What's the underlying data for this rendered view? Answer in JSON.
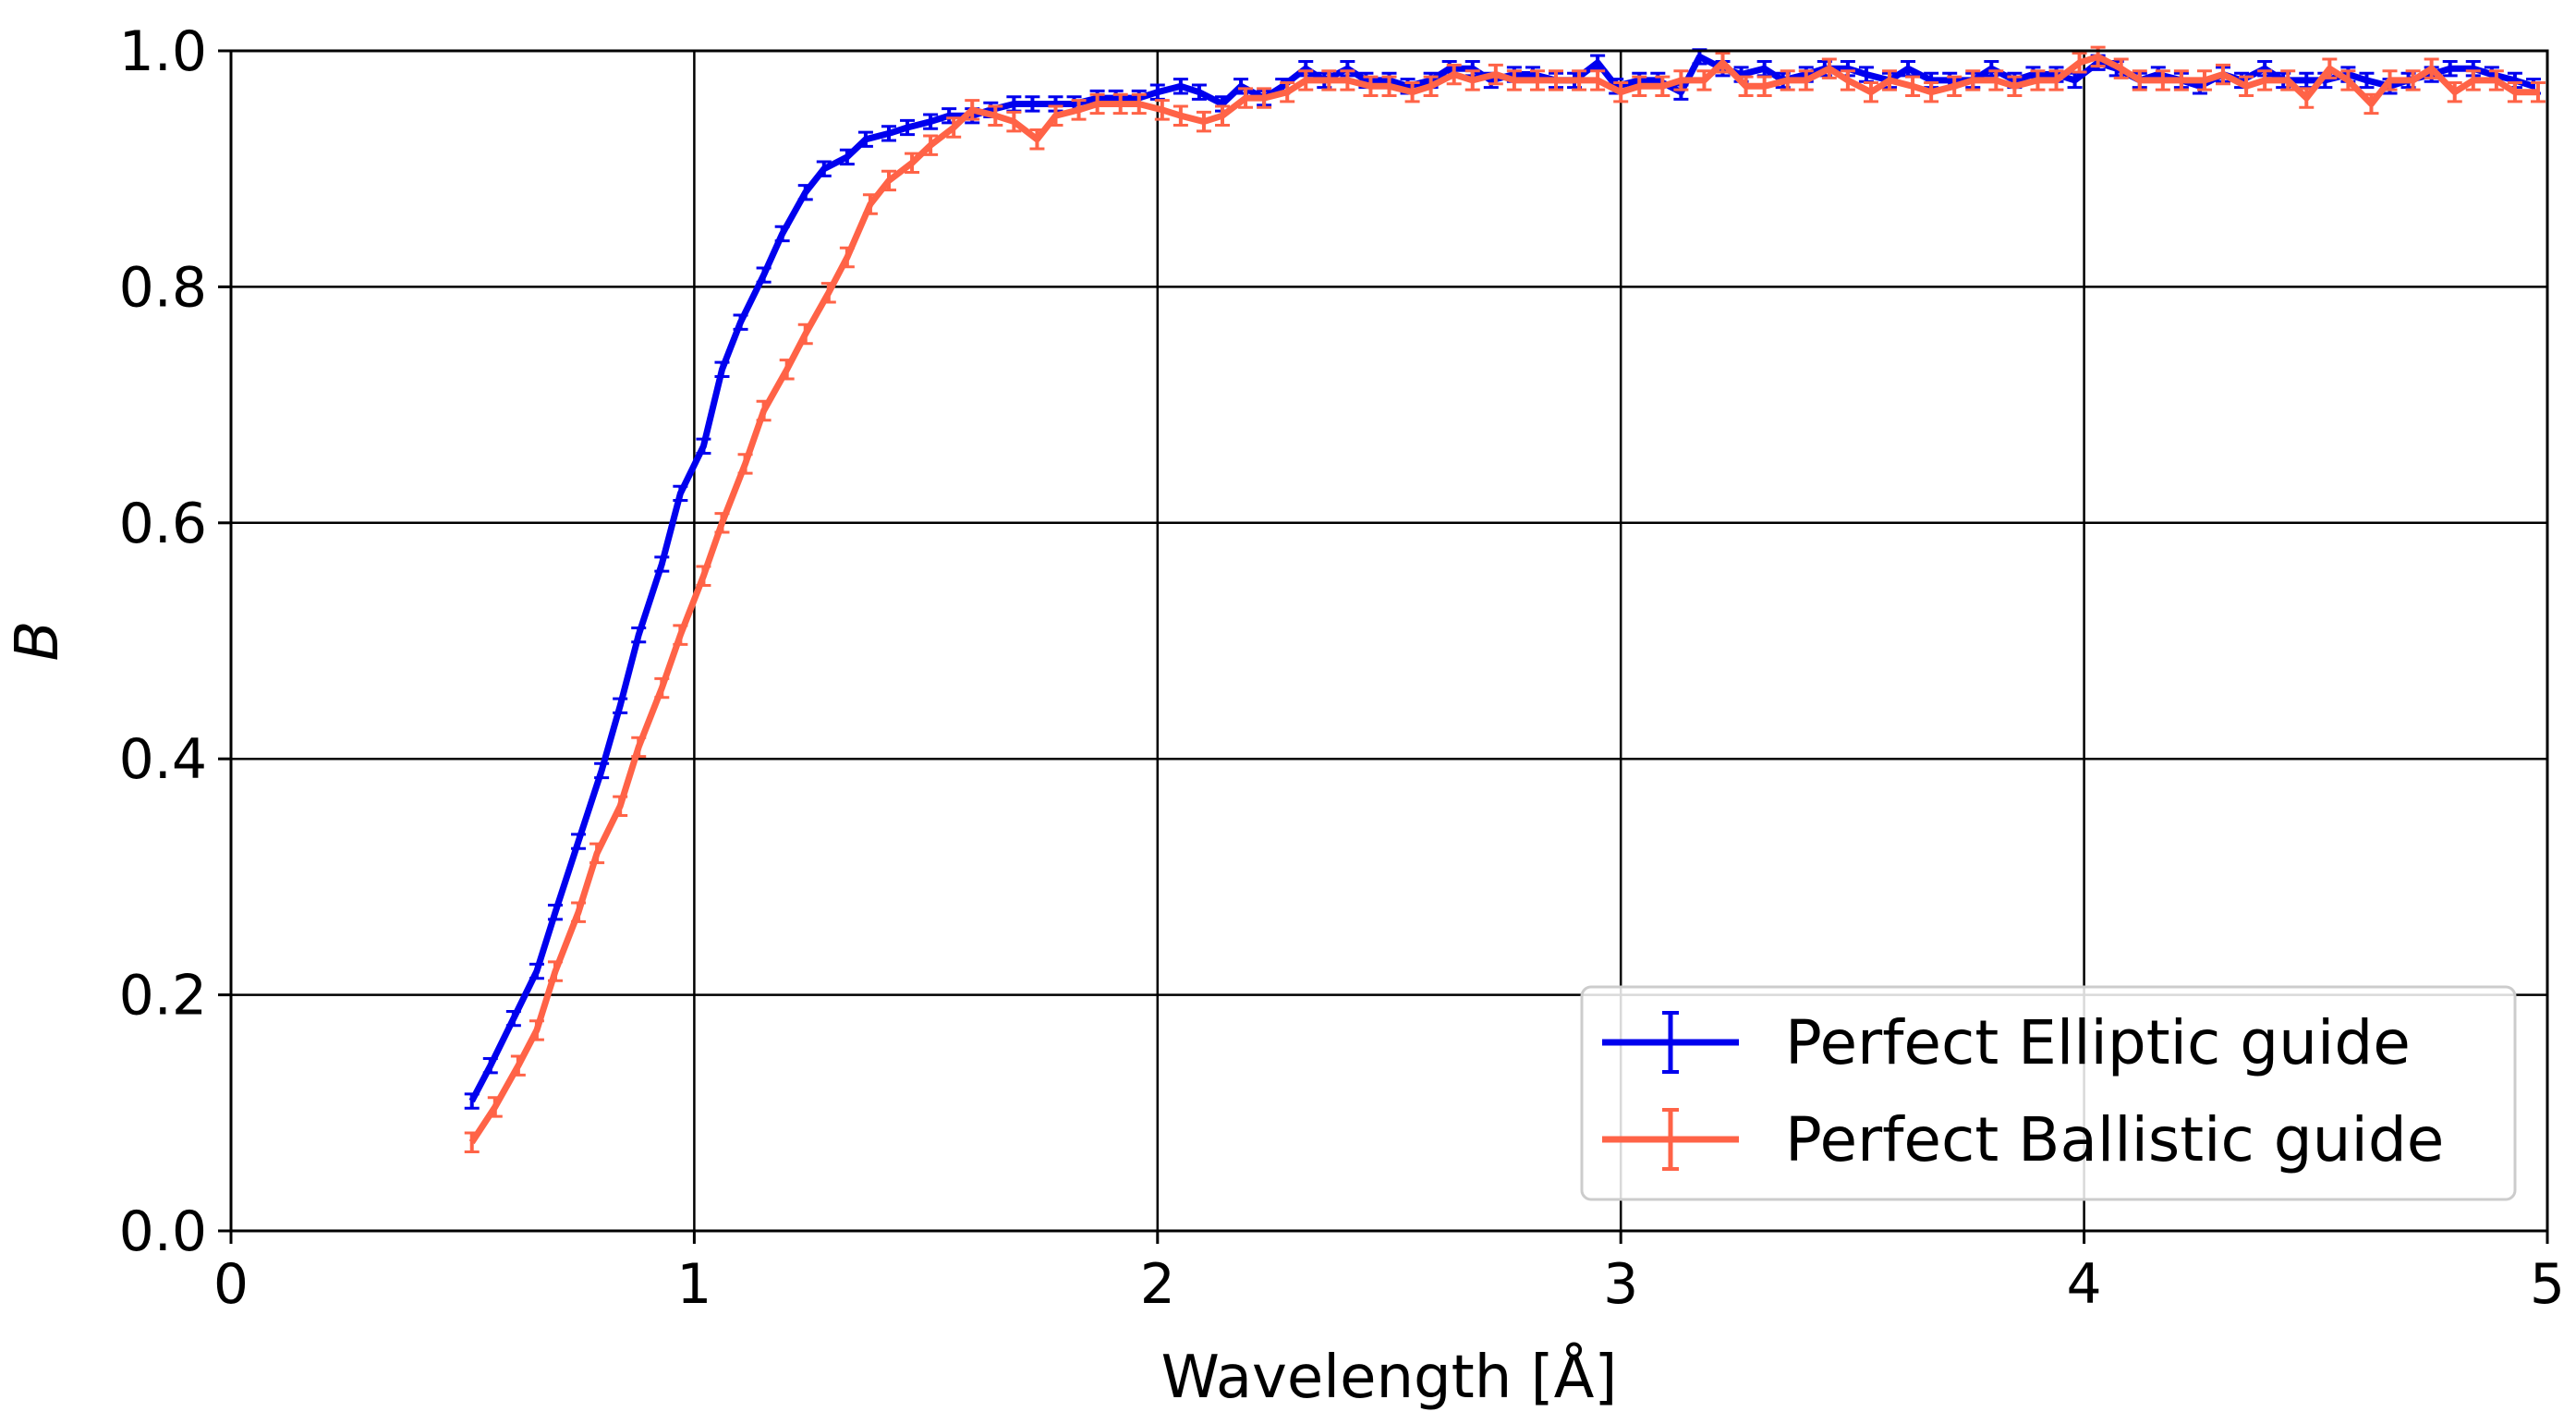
{
  "chart_data": {
    "type": "line",
    "xlabel": "Wavelength  [Å]",
    "ylabel": "B",
    "xlim": [
      0,
      5
    ],
    "ylim": [
      0,
      1.0
    ],
    "xticks": [
      0,
      1,
      2,
      3,
      4,
      5
    ],
    "xtick_labels": [
      "0",
      "1",
      "2",
      "3",
      "4",
      "5"
    ],
    "yticks": [
      0.0,
      0.2,
      0.4,
      0.6,
      0.8,
      1.0
    ],
    "ytick_labels": [
      "0.0",
      "0.2",
      "0.4",
      "0.6",
      "0.8",
      "1.0"
    ],
    "grid": true,
    "legend_position": "bottom-right",
    "error_bars": true,
    "series": [
      {
        "name": "Perfect Elliptic guide",
        "color": "#0000ee",
        "points": [
          [
            0.52,
            0.11
          ],
          [
            0.56,
            0.14
          ],
          [
            0.61,
            0.18
          ],
          [
            0.66,
            0.22
          ],
          [
            0.7,
            0.27
          ],
          [
            0.75,
            0.33
          ],
          [
            0.8,
            0.39
          ],
          [
            0.84,
            0.445
          ],
          [
            0.88,
            0.505
          ],
          [
            0.93,
            0.565
          ],
          [
            0.97,
            0.625
          ],
          [
            1.02,
            0.665
          ],
          [
            1.06,
            0.73
          ],
          [
            1.1,
            0.77
          ],
          [
            1.15,
            0.81
          ],
          [
            1.19,
            0.845
          ],
          [
            1.24,
            0.88
          ],
          [
            1.28,
            0.9
          ],
          [
            1.33,
            0.91
          ],
          [
            1.37,
            0.925
          ],
          [
            1.42,
            0.93
          ],
          [
            1.46,
            0.935
          ],
          [
            1.51,
            0.94
          ],
          [
            1.55,
            0.945
          ],
          [
            1.6,
            0.945
          ],
          [
            1.64,
            0.95
          ],
          [
            1.69,
            0.955
          ],
          [
            1.73,
            0.955
          ],
          [
            1.78,
            0.955
          ],
          [
            1.82,
            0.955
          ],
          [
            1.87,
            0.96
          ],
          [
            1.91,
            0.96
          ],
          [
            1.96,
            0.96
          ],
          [
            2.0,
            0.965
          ],
          [
            2.05,
            0.97
          ],
          [
            2.09,
            0.965
          ],
          [
            2.14,
            0.955
          ],
          [
            2.18,
            0.97
          ],
          [
            2.23,
            0.96
          ],
          [
            2.27,
            0.97
          ],
          [
            2.32,
            0.985
          ],
          [
            2.36,
            0.975
          ],
          [
            2.41,
            0.985
          ],
          [
            2.45,
            0.975
          ],
          [
            2.5,
            0.975
          ],
          [
            2.54,
            0.97
          ],
          [
            2.59,
            0.975
          ],
          [
            2.63,
            0.985
          ],
          [
            2.68,
            0.985
          ],
          [
            2.72,
            0.975
          ],
          [
            2.77,
            0.98
          ],
          [
            2.81,
            0.98
          ],
          [
            2.86,
            0.975
          ],
          [
            2.9,
            0.975
          ],
          [
            2.95,
            0.99
          ],
          [
            2.99,
            0.97
          ],
          [
            3.04,
            0.975
          ],
          [
            3.08,
            0.975
          ],
          [
            3.13,
            0.965
          ],
          [
            3.17,
            0.995
          ],
          [
            3.22,
            0.985
          ],
          [
            3.26,
            0.98
          ],
          [
            3.31,
            0.985
          ],
          [
            3.35,
            0.975
          ],
          [
            3.4,
            0.98
          ],
          [
            3.44,
            0.985
          ],
          [
            3.49,
            0.985
          ],
          [
            3.53,
            0.98
          ],
          [
            3.58,
            0.975
          ],
          [
            3.62,
            0.985
          ],
          [
            3.67,
            0.975
          ],
          [
            3.71,
            0.975
          ],
          [
            3.76,
            0.975
          ],
          [
            3.8,
            0.985
          ],
          [
            3.85,
            0.975
          ],
          [
            3.89,
            0.98
          ],
          [
            3.94,
            0.98
          ],
          [
            3.98,
            0.975
          ],
          [
            4.03,
            0.99
          ],
          [
            4.07,
            0.985
          ],
          [
            4.12,
            0.975
          ],
          [
            4.16,
            0.98
          ],
          [
            4.21,
            0.975
          ],
          [
            4.25,
            0.97
          ],
          [
            4.3,
            0.98
          ],
          [
            4.34,
            0.975
          ],
          [
            4.39,
            0.985
          ],
          [
            4.43,
            0.975
          ],
          [
            4.48,
            0.975
          ],
          [
            4.52,
            0.975
          ],
          [
            4.57,
            0.98
          ],
          [
            4.61,
            0.975
          ],
          [
            4.66,
            0.97
          ],
          [
            4.7,
            0.975
          ],
          [
            4.75,
            0.98
          ],
          [
            4.79,
            0.985
          ],
          [
            4.84,
            0.985
          ],
          [
            4.88,
            0.98
          ],
          [
            4.93,
            0.975
          ],
          [
            4.97,
            0.97
          ]
        ],
        "error": 0.006
      },
      {
        "name": "Perfect Ballistic guide",
        "color": "#ff6347",
        "points": [
          [
            0.52,
            0.075
          ],
          [
            0.57,
            0.105
          ],
          [
            0.62,
            0.14
          ],
          [
            0.66,
            0.17
          ],
          [
            0.7,
            0.22
          ],
          [
            0.75,
            0.27
          ],
          [
            0.79,
            0.32
          ],
          [
            0.84,
            0.36
          ],
          [
            0.88,
            0.41
          ],
          [
            0.93,
            0.46
          ],
          [
            0.97,
            0.505
          ],
          [
            1.02,
            0.555
          ],
          [
            1.06,
            0.6
          ],
          [
            1.11,
            0.65
          ],
          [
            1.15,
            0.695
          ],
          [
            1.2,
            0.73
          ],
          [
            1.24,
            0.76
          ],
          [
            1.29,
            0.795
          ],
          [
            1.33,
            0.825
          ],
          [
            1.38,
            0.87
          ],
          [
            1.42,
            0.89
          ],
          [
            1.47,
            0.905
          ],
          [
            1.51,
            0.92
          ],
          [
            1.56,
            0.935
          ],
          [
            1.6,
            0.95
          ],
          [
            1.65,
            0.945
          ],
          [
            1.69,
            0.94
          ],
          [
            1.74,
            0.925
          ],
          [
            1.78,
            0.945
          ],
          [
            1.83,
            0.95
          ],
          [
            1.87,
            0.955
          ],
          [
            1.92,
            0.955
          ],
          [
            1.96,
            0.955
          ],
          [
            2.01,
            0.95
          ],
          [
            2.05,
            0.945
          ],
          [
            2.1,
            0.94
          ],
          [
            2.14,
            0.945
          ],
          [
            2.19,
            0.96
          ],
          [
            2.23,
            0.96
          ],
          [
            2.28,
            0.965
          ],
          [
            2.32,
            0.975
          ],
          [
            2.37,
            0.975
          ],
          [
            2.41,
            0.975
          ],
          [
            2.46,
            0.97
          ],
          [
            2.5,
            0.97
          ],
          [
            2.55,
            0.965
          ],
          [
            2.59,
            0.97
          ],
          [
            2.64,
            0.98
          ],
          [
            2.68,
            0.975
          ],
          [
            2.73,
            0.98
          ],
          [
            2.77,
            0.975
          ],
          [
            2.82,
            0.975
          ],
          [
            2.86,
            0.975
          ],
          [
            2.91,
            0.975
          ],
          [
            2.95,
            0.975
          ],
          [
            3.0,
            0.965
          ],
          [
            3.04,
            0.97
          ],
          [
            3.09,
            0.97
          ],
          [
            3.13,
            0.975
          ],
          [
            3.18,
            0.975
          ],
          [
            3.22,
            0.99
          ],
          [
            3.27,
            0.97
          ],
          [
            3.31,
            0.97
          ],
          [
            3.36,
            0.975
          ],
          [
            3.4,
            0.975
          ],
          [
            3.45,
            0.985
          ],
          [
            3.49,
            0.975
          ],
          [
            3.54,
            0.965
          ],
          [
            3.58,
            0.975
          ],
          [
            3.63,
            0.97
          ],
          [
            3.67,
            0.965
          ],
          [
            3.72,
            0.97
          ],
          [
            3.76,
            0.975
          ],
          [
            3.81,
            0.975
          ],
          [
            3.85,
            0.97
          ],
          [
            3.9,
            0.975
          ],
          [
            3.94,
            0.975
          ],
          [
            3.99,
            0.99
          ],
          [
            4.03,
            0.995
          ],
          [
            4.08,
            0.985
          ],
          [
            4.12,
            0.975
          ],
          [
            4.17,
            0.975
          ],
          [
            4.21,
            0.975
          ],
          [
            4.26,
            0.975
          ],
          [
            4.3,
            0.98
          ],
          [
            4.35,
            0.97
          ],
          [
            4.39,
            0.975
          ],
          [
            4.44,
            0.975
          ],
          [
            4.48,
            0.96
          ],
          [
            4.53,
            0.985
          ],
          [
            4.57,
            0.975
          ],
          [
            4.62,
            0.955
          ],
          [
            4.66,
            0.975
          ],
          [
            4.71,
            0.975
          ],
          [
            4.75,
            0.985
          ],
          [
            4.8,
            0.965
          ],
          [
            4.84,
            0.975
          ],
          [
            4.89,
            0.975
          ],
          [
            4.93,
            0.965
          ],
          [
            4.98,
            0.965
          ]
        ],
        "error": 0.008
      }
    ]
  }
}
